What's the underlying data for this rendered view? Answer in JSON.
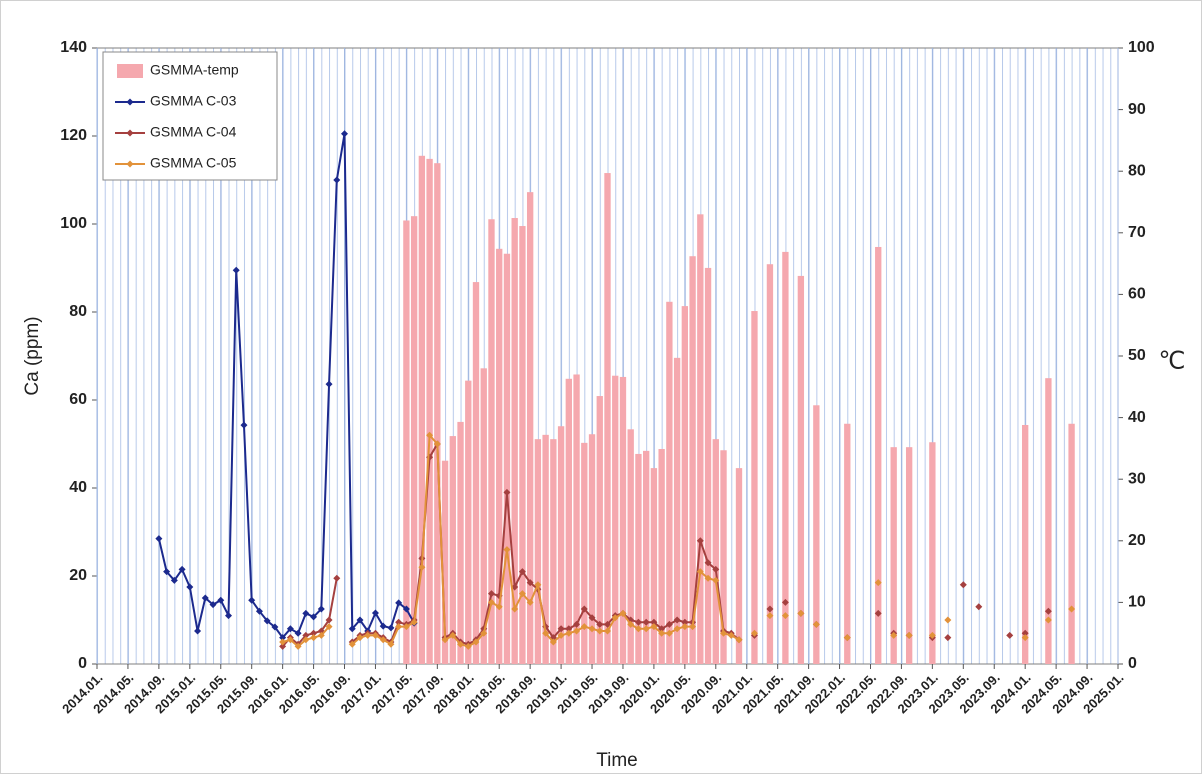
{
  "chart_data": {
    "type": "combo",
    "xlabel": "Time",
    "ylabel": "Ca (ppm)",
    "y2label": "℃",
    "xlim": [
      "2014.01.",
      "2025.01."
    ],
    "xticks": [
      "2014.01.",
      "2014.05.",
      "2014.09.",
      "2015.01.",
      "2015.05.",
      "2015.09.",
      "2016.01.",
      "2016.05.",
      "2016.09.",
      "2017.01.",
      "2017.05.",
      "2017.09.",
      "2018.01.",
      "2018.05.",
      "2018.09.",
      "2019.01.",
      "2019.05.",
      "2019.09.",
      "2020.01.",
      "2020.05.",
      "2020.09.",
      "2021.01.",
      "2021.05.",
      "2021.09.",
      "2022.01.",
      "2022.05.",
      "2022.09.",
      "2023.01.",
      "2023.05.",
      "2023.09.",
      "2024.01.",
      "2024.05.",
      "2024.09.",
      "2025.01."
    ],
    "ylim": [
      0,
      140
    ],
    "yticks": [
      0,
      20,
      40,
      60,
      80,
      100,
      120,
      140
    ],
    "y2lim": [
      0,
      100
    ],
    "y2ticks": [
      0,
      10,
      20,
      30,
      40,
      50,
      60,
      70,
      80,
      90,
      100
    ],
    "grid": "monthly",
    "legend": "upper left",
    "x": [
      "2014.09",
      "2014.10",
      "2014.11",
      "2014.12",
      "2015.01",
      "2015.02",
      "2015.03",
      "2015.04",
      "2015.05",
      "2015.06",
      "2015.07",
      "2015.08",
      "2015.09",
      "2015.10",
      "2015.11",
      "2015.12",
      "2016.01",
      "2016.02",
      "2016.03",
      "2016.04",
      "2016.05",
      "2016.06",
      "2016.07",
      "2016.08",
      "2016.09",
      "2016.10",
      "2016.11",
      "2016.12",
      "2017.01",
      "2017.02",
      "2017.03",
      "2017.04",
      "2017.05",
      "2017.06",
      "2017.07",
      "2017.08",
      "2017.09",
      "2017.10",
      "2017.11",
      "2017.12",
      "2018.01",
      "2018.02",
      "2018.03",
      "2018.04",
      "2018.05",
      "2018.06",
      "2018.07",
      "2018.08",
      "2018.09",
      "2018.10",
      "2018.11",
      "2018.12",
      "2019.01",
      "2019.02",
      "2019.03",
      "2019.04",
      "2019.05",
      "2019.06",
      "2019.07",
      "2019.08",
      "2019.09",
      "2019.10",
      "2019.11",
      "2019.12",
      "2020.01",
      "2020.02",
      "2020.03",
      "2020.04",
      "2020.05",
      "2020.06",
      "2020.07",
      "2020.08",
      "2020.09",
      "2020.10",
      "2020.11",
      "2020.12",
      "2021.01",
      "2021.02",
      "2021.03",
      "2021.04",
      "2021.05",
      "2021.06",
      "2021.07",
      "2021.08",
      "2021.09",
      "2021.10",
      "2021.11",
      "2021.12",
      "2022.01",
      "2022.02",
      "2022.03",
      "2022.04",
      "2022.05",
      "2022.06",
      "2022.07",
      "2022.08",
      "2022.09",
      "2022.10",
      "2022.11",
      "2022.12",
      "2023.01",
      "2023.02",
      "2023.03",
      "2023.04",
      "2023.05",
      "2023.06",
      "2023.07",
      "2023.08",
      "2023.09",
      "2023.10",
      "2023.11",
      "2023.12",
      "2024.01",
      "2024.02",
      "2024.03",
      "2024.04",
      "2024.05",
      "2024.06",
      "2024.07"
    ],
    "series": [
      {
        "name": "GSMMA-temp",
        "mark": "bar",
        "axis": "y2",
        "color": "#f5a8ae",
        "values": [
          null,
          null,
          null,
          null,
          null,
          null,
          null,
          null,
          null,
          null,
          null,
          null,
          null,
          null,
          null,
          null,
          null,
          null,
          null,
          null,
          null,
          null,
          null,
          null,
          null,
          null,
          null,
          null,
          null,
          null,
          null,
          null,
          72,
          72.7,
          82.5,
          82,
          81.3,
          33,
          37,
          39.3,
          46,
          62,
          48,
          72.2,
          67.4,
          66.6,
          72.4,
          71.1,
          76.6,
          36.5,
          37.2,
          36.5,
          38.6,
          46.3,
          47,
          35.9,
          37.3,
          43.5,
          79.7,
          46.8,
          46.6,
          38.1,
          34.1,
          34.6,
          31.8,
          34.9,
          58.8,
          49.7,
          58.1,
          66.2,
          73,
          64.3,
          36.5,
          34.7,
          null,
          31.8,
          null,
          57.3,
          null,
          64.9,
          null,
          66.9,
          null,
          63,
          null,
          42,
          null,
          null,
          null,
          39,
          null,
          null,
          null,
          67.7,
          null,
          35.2,
          null,
          35.2,
          null,
          null,
          36,
          null,
          null,
          null,
          null,
          null,
          null,
          null,
          null,
          null,
          null,
          null,
          38.8,
          null,
          null,
          46.4,
          null,
          null,
          39
        ]
      },
      {
        "name": "GSMMA C-03",
        "mark": "line",
        "color": "#1c2a8e",
        "values": [
          28.5,
          21,
          19,
          21.5,
          17.5,
          7.5,
          15,
          13.5,
          14.5,
          11,
          89.5,
          54.3,
          14.5,
          12,
          9.8,
          8.4,
          6,
          8,
          7,
          11.5,
          10.7,
          12.5,
          63.6,
          110,
          120.5,
          8,
          10,
          7.5,
          11.6,
          8.6,
          8.2,
          13.9,
          12.5,
          9.3,
          null,
          null,
          null,
          null,
          null,
          null,
          null,
          null,
          null,
          null,
          null,
          null,
          null,
          null,
          null,
          null,
          null,
          null,
          null,
          null,
          null,
          null,
          null,
          null,
          null,
          null,
          null,
          null,
          null,
          null,
          null,
          null,
          null,
          null,
          null,
          null,
          null,
          null,
          null,
          null,
          null,
          null,
          null,
          null,
          null,
          null,
          null,
          null,
          null,
          null,
          null,
          null,
          null,
          null,
          null,
          null,
          null,
          null,
          null,
          null,
          null,
          null,
          null,
          null,
          null,
          null,
          null,
          null,
          null,
          null,
          null,
          null,
          null,
          null,
          null,
          null,
          null,
          null,
          null,
          null,
          null,
          null,
          null,
          null,
          null
        ]
      },
      {
        "name": "GSMMA C-04",
        "mark": "line",
        "color": "#a5403f",
        "values": [
          null,
          null,
          null,
          null,
          null,
          null,
          null,
          null,
          null,
          null,
          null,
          null,
          null,
          null,
          null,
          null,
          4,
          6,
          4.5,
          6.5,
          7,
          7.5,
          10,
          19.5,
          null,
          5,
          6.5,
          7,
          7,
          6,
          5,
          9.5,
          9,
          10,
          24,
          47,
          50,
          6,
          7,
          5,
          4.5,
          5.5,
          8,
          16,
          15.5,
          39,
          17.5,
          21,
          18.5,
          17,
          8.5,
          6,
          8,
          8,
          9,
          12.5,
          10.5,
          9,
          9,
          11,
          11.5,
          10,
          9.5,
          9.5,
          9.5,
          8,
          9,
          10,
          9.5,
          9.5,
          28,
          23,
          21.5,
          7.5,
          7,
          5.5,
          null,
          6.5,
          null,
          12.5,
          null,
          14,
          null,
          11.5,
          null,
          9,
          null,
          null,
          null,
          6,
          null,
          null,
          null,
          11.5,
          null,
          7,
          null,
          6.5,
          null,
          null,
          6,
          null,
          6,
          null,
          18,
          null,
          13,
          null,
          null,
          null,
          6.5,
          null,
          7,
          null,
          null,
          12,
          null,
          null,
          null
        ]
      },
      {
        "name": "GSMMA C-05",
        "mark": "line",
        "color": "#e2923a",
        "values": [
          null,
          null,
          null,
          null,
          null,
          null,
          null,
          null,
          null,
          null,
          null,
          null,
          null,
          null,
          null,
          null,
          5,
          5.5,
          4,
          5.5,
          6,
          6.5,
          8.5,
          null,
          null,
          4.5,
          6,
          6.5,
          6.5,
          5.5,
          4.5,
          8.5,
          8.5,
          9.5,
          22,
          52,
          50,
          5.5,
          6.5,
          4.5,
          4,
          5,
          7,
          14,
          13,
          26,
          12.5,
          16,
          14,
          18,
          7,
          5,
          6.5,
          7,
          7.5,
          8.5,
          8,
          7.5,
          7.5,
          10.5,
          11.5,
          9,
          8,
          8,
          8.5,
          7,
          7,
          8,
          8.5,
          8.5,
          21,
          19.5,
          19,
          7,
          6.5,
          5.5,
          null,
          7,
          null,
          11,
          null,
          11,
          null,
          11.5,
          null,
          9,
          null,
          null,
          null,
          6,
          null,
          null,
          null,
          18.5,
          null,
          6.5,
          null,
          6.5,
          null,
          null,
          6.5,
          null,
          10,
          null,
          null,
          null,
          null,
          null,
          null,
          null,
          null,
          null,
          6,
          null,
          null,
          10,
          null,
          null,
          12.5
        ]
      }
    ]
  }
}
